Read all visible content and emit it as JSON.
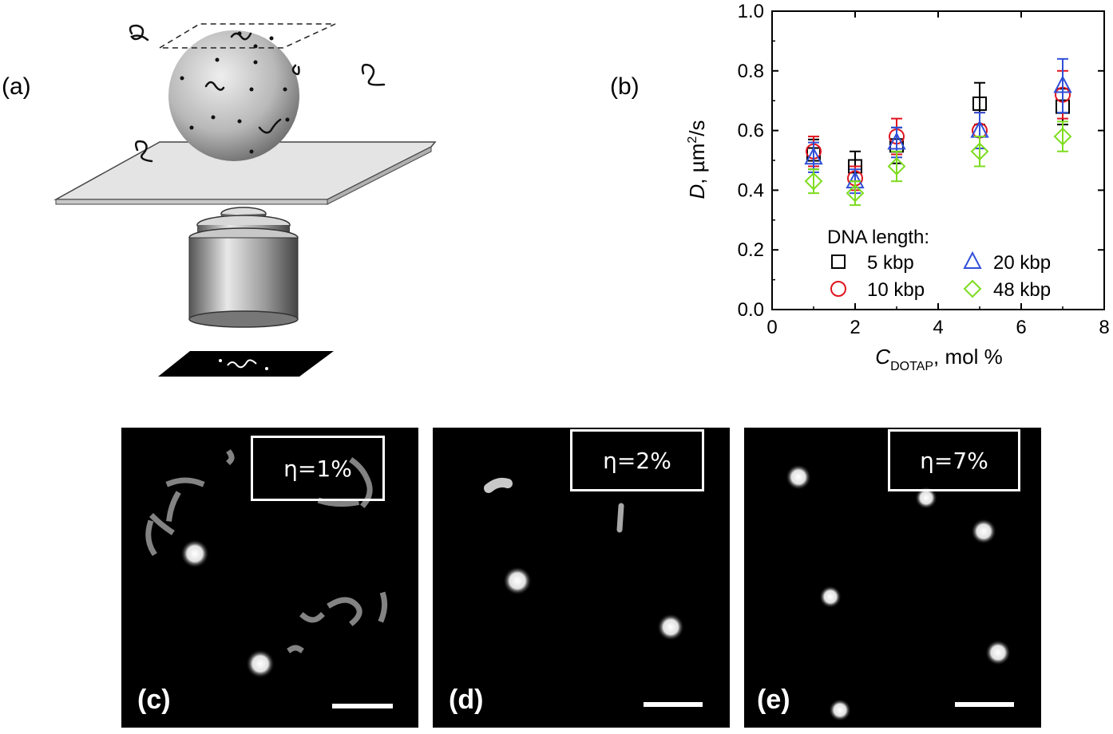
{
  "panels": {
    "a": {
      "label": "(a)"
    },
    "b": {
      "label": "(b)"
    },
    "c": {
      "label": "(c)",
      "eta": "η=1%"
    },
    "d": {
      "label": "(d)",
      "eta": "η=2%"
    },
    "e": {
      "label": "(e)",
      "eta": "η=7%"
    }
  },
  "chart_data": {
    "type": "scatter",
    "ylabel_main": "D",
    "ylabel_rest": ", µm",
    "ylabel_sup": "2",
    "ylabel_end": "/s",
    "xlabel_main": "C",
    "xlabel_sub": "DOTAP",
    "xlabel_end": ", mol %",
    "xlim": [
      0,
      8
    ],
    "ylim": [
      0,
      1.0
    ],
    "xticks": [
      "0",
      "2",
      "4",
      "6",
      "8"
    ],
    "yticks": [
      "0.0",
      "0.2",
      "0.4",
      "0.6",
      "0.8",
      "1.0"
    ],
    "legend_title": "DNA length:",
    "legend_position": "bottom-right",
    "series": [
      {
        "name": "5 kbp",
        "marker": "square",
        "color": "#000000",
        "x": [
          1,
          2,
          3,
          5,
          7
        ],
        "y": [
          0.52,
          0.48,
          0.55,
          0.69,
          0.68
        ],
        "err": [
          0.05,
          0.05,
          0.06,
          0.07,
          0.06
        ]
      },
      {
        "name": "10 kbp",
        "marker": "circle",
        "color": "#e0141e",
        "x": [
          1,
          2,
          3,
          5,
          7
        ],
        "y": [
          0.53,
          0.44,
          0.58,
          0.6,
          0.72
        ],
        "err": [
          0.05,
          0.04,
          0.06,
          0.06,
          0.08
        ]
      },
      {
        "name": "20 kbp",
        "marker": "triangle",
        "color": "#2f4fd8",
        "x": [
          1,
          2,
          3,
          5,
          7
        ],
        "y": [
          0.51,
          0.43,
          0.56,
          0.6,
          0.75
        ],
        "err": [
          0.05,
          0.04,
          0.05,
          0.06,
          0.09
        ]
      },
      {
        "name": "48 kbp",
        "marker": "diamond",
        "color": "#7ddc1f",
        "x": [
          1,
          2,
          3,
          5,
          7
        ],
        "y": [
          0.43,
          0.39,
          0.48,
          0.53,
          0.58
        ],
        "err": [
          0.04,
          0.04,
          0.05,
          0.05,
          0.05
        ]
      }
    ]
  }
}
